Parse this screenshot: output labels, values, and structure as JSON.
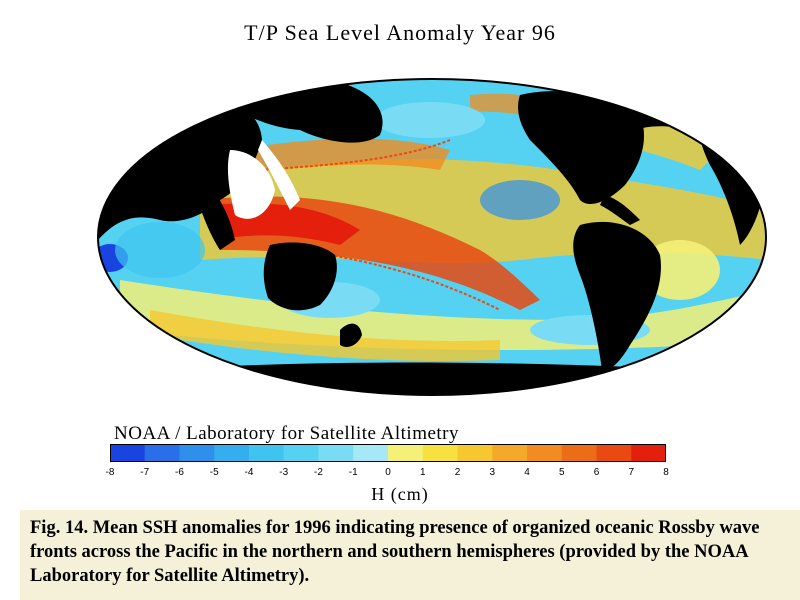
{
  "title": "T/P Sea Level Anomaly Year 96",
  "credit": "NOAA / Laboratory for Satellite Altimetry",
  "colorbar": {
    "ticks": [
      "-8",
      "-7",
      "-6",
      "-5",
      "-4",
      "-3",
      "-2",
      "-1",
      "0",
      "1",
      "2",
      "3",
      "4",
      "5",
      "6",
      "7",
      "8"
    ],
    "colors": [
      "#1a44e0",
      "#2a6ee8",
      "#2f90ec",
      "#35aef0",
      "#3fc4f0",
      "#55d2f2",
      "#7adcf4",
      "#a6e8f6",
      "#f4f078",
      "#f8e040",
      "#f6c830",
      "#f2aa28",
      "#f08c20",
      "#ec6c18",
      "#e84a12",
      "#e4200c"
    ],
    "unit_label": "H (cm)"
  },
  "caption": {
    "text": "Fig. 14.  Mean SSH anomalies for 1996 indicating presence of organized oceanic Rossby wave fronts across the Pacific in the northern and southern hemispheres (provided by the NOAA Laboratory for Satellite Altimetry)."
  }
}
